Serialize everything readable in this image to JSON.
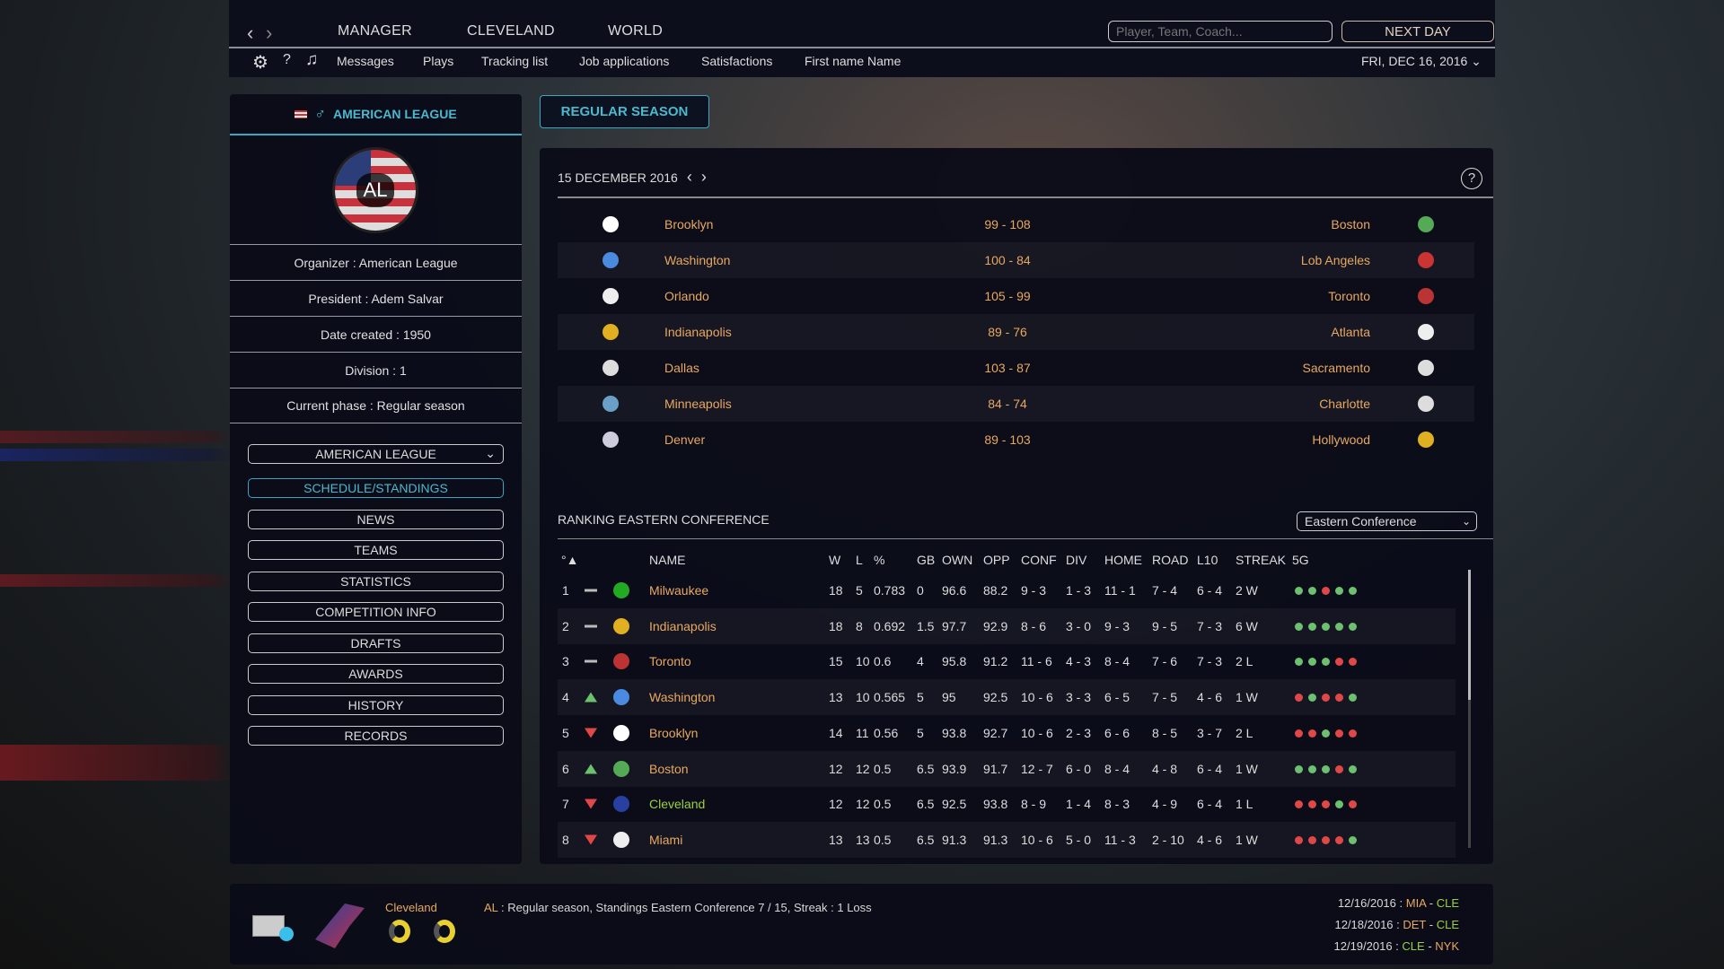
{
  "topbar": {
    "tabs": [
      "MANAGER",
      "CLEVELAND",
      "WORLD"
    ],
    "search_placeholder": "Player, Team, Coach...",
    "next_day": "NEXT DAY",
    "menu": [
      "Messages",
      "Plays",
      "Tracking list",
      "Job applications",
      "Satisfactions",
      "First name Name"
    ],
    "date": "FRI, DEC 16, 2016"
  },
  "league": {
    "title": "AMERICAN LEAGUE",
    "logo_text": "AL",
    "info": [
      "Organizer : American League",
      "President : Adem Salvar",
      "Date created : 1950",
      "Division : 1",
      "Current phase : Regular season"
    ],
    "dropdown": "AMERICAN LEAGUE",
    "menu": [
      "SCHEDULE/STANDINGS",
      "NEWS",
      "TEAMS",
      "STATISTICS",
      "COMPETITION INFO",
      "DRAFTS",
      "AWARDS",
      "HISTORY",
      "RECORDS"
    ],
    "active": "SCHEDULE/STANDINGS"
  },
  "season_tab": "REGULAR SEASON",
  "results": {
    "date": "15 DECEMBER 2016",
    "games": [
      {
        "home": "Brooklyn",
        "score": "99 - 108",
        "away": "Boston"
      },
      {
        "home": "Washington",
        "score": "100 - 84",
        "away": "Lob Angeles"
      },
      {
        "home": "Orlando",
        "score": "105 - 99",
        "away": "Toronto"
      },
      {
        "home": "Indianapolis",
        "score": "89 - 76",
        "away": "Atlanta"
      },
      {
        "home": "Dallas",
        "score": "103 - 87",
        "away": "Sacramento"
      },
      {
        "home": "Minneapolis",
        "score": "84 - 74",
        "away": "Charlotte"
      },
      {
        "home": "Denver",
        "score": "89 - 103",
        "away": "Hollywood"
      }
    ]
  },
  "ranking": {
    "title": "RANKING EASTERN CONFERENCE",
    "conference_select": "Eastern Conference",
    "columns": [
      "°▲",
      "NAME",
      "W",
      "L",
      "%",
      "GB",
      "OWN",
      "OPP",
      "CONF",
      "DIV",
      "HOME",
      "ROAD",
      "L10",
      "STREAK",
      "5G"
    ],
    "rows": [
      {
        "rank": "1",
        "trend": "same",
        "name": "Milwaukee",
        "w": "18",
        "l": "5",
        "pct": "0.783",
        "gb": "0",
        "own": "96.6",
        "opp": "88.2",
        "conf": "9 - 3",
        "div": "1 - 3",
        "home": "11 - 1",
        "road": "7 - 4",
        "l10": "6 - 4",
        "streak": "2 W",
        "last5": [
          "W",
          "W",
          "L",
          "W",
          "W"
        ]
      },
      {
        "rank": "2",
        "trend": "same",
        "name": "Indianapolis",
        "w": "18",
        "l": "8",
        "pct": "0.692",
        "gb": "1.5",
        "own": "97.7",
        "opp": "92.9",
        "conf": "8 - 6",
        "div": "3 - 0",
        "home": "9 - 3",
        "road": "9 - 5",
        "l10": "7 - 3",
        "streak": "6 W",
        "last5": [
          "W",
          "W",
          "W",
          "W",
          "W"
        ]
      },
      {
        "rank": "3",
        "trend": "same",
        "name": "Toronto",
        "w": "15",
        "l": "10",
        "pct": "0.6",
        "gb": "4",
        "own": "95.8",
        "opp": "91.2",
        "conf": "11 - 6",
        "div": "4 - 3",
        "home": "8 - 4",
        "road": "7 - 6",
        "l10": "7 - 3",
        "streak": "2 L",
        "last5": [
          "W",
          "W",
          "W",
          "L",
          "L"
        ]
      },
      {
        "rank": "4",
        "trend": "up",
        "name": "Washington",
        "w": "13",
        "l": "10",
        "pct": "0.565",
        "gb": "5",
        "own": "95",
        "opp": "92.5",
        "conf": "10 - 6",
        "div": "3 - 3",
        "home": "6 - 5",
        "road": "7 - 5",
        "l10": "4 - 6",
        "streak": "1 W",
        "last5": [
          "L",
          "W",
          "L",
          "L",
          "W"
        ]
      },
      {
        "rank": "5",
        "trend": "down",
        "name": "Brooklyn",
        "w": "14",
        "l": "11",
        "pct": "0.56",
        "gb": "5",
        "own": "93.8",
        "opp": "92.7",
        "conf": "10 - 6",
        "div": "2 - 3",
        "home": "6 - 6",
        "road": "8 - 5",
        "l10": "3 - 7",
        "streak": "2 L",
        "last5": [
          "L",
          "L",
          "W",
          "L",
          "L"
        ]
      },
      {
        "rank": "6",
        "trend": "up",
        "name": "Boston",
        "w": "12",
        "l": "12",
        "pct": "0.5",
        "gb": "6.5",
        "own": "93.9",
        "opp": "91.7",
        "conf": "12 - 7",
        "div": "6 - 0",
        "home": "8 - 4",
        "road": "4 - 8",
        "l10": "6 - 4",
        "streak": "1 W",
        "last5": [
          "W",
          "W",
          "W",
          "L",
          "W"
        ]
      },
      {
        "rank": "7",
        "trend": "down",
        "name": "Cleveland",
        "w": "12",
        "l": "12",
        "pct": "0.5",
        "gb": "6.5",
        "own": "92.5",
        "opp": "93.8",
        "conf": "8 - 9",
        "div": "1 - 4",
        "home": "8 - 3",
        "road": "4 - 9",
        "l10": "6 - 4",
        "streak": "1 L",
        "last5": [
          "L",
          "L",
          "L",
          "W",
          "L"
        ]
      },
      {
        "rank": "8",
        "trend": "down",
        "name": "Miami",
        "w": "13",
        "l": "13",
        "pct": "0.5",
        "gb": "6.5",
        "own": "91.3",
        "opp": "91.3",
        "conf": "10 - 6",
        "div": "5 - 0",
        "home": "11 - 3",
        "road": "2 - 10",
        "l10": "4 - 6",
        "streak": "1 W",
        "last5": [
          "L",
          "L",
          "L",
          "L",
          "W"
        ]
      }
    ]
  },
  "footer": {
    "team": "Cleveland",
    "message_prefix": "AL",
    "message": " : Regular season, Standings Eastern Conference 7 / 15, Streak : 1 Loss",
    "upcoming": [
      {
        "date": "12/16/2016 : ",
        "a": "MIA",
        "b": "CLE"
      },
      {
        "date": "12/18/2016 : ",
        "a": "DET",
        "b": "CLE"
      },
      {
        "date": "12/19/2016 : ",
        "a": "CLE",
        "b": "NYK"
      }
    ]
  },
  "colors": {
    "accent": "#4ab8cf",
    "team_name": "#e8a860",
    "own_team": "#9ad040",
    "win": "#6cc070",
    "loss": "#e04848"
  }
}
